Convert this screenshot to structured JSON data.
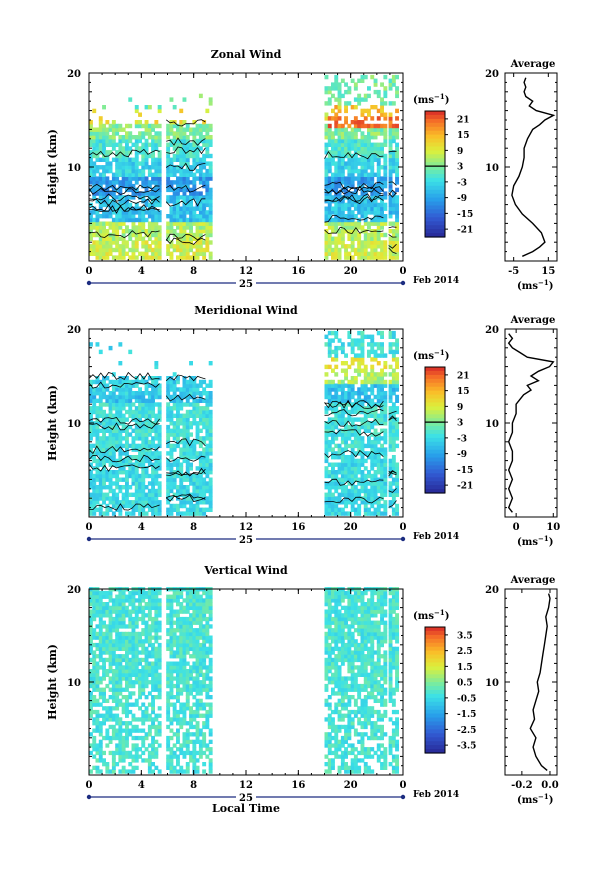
{
  "chart_data": [
    {
      "type": "heatmap",
      "title": "Zonal Wind",
      "ylabel": "Height (km)",
      "xticks": [
        "0",
        "4",
        "8",
        "12",
        "16",
        "20",
        "0"
      ],
      "yticks": [
        "10",
        "20"
      ],
      "date_label": "25",
      "month_label": "Feb 2014",
      "xlim": [
        0,
        24
      ],
      "ylim": [
        0,
        20
      ],
      "data_segments_hours": [
        [
          0,
          5.5
        ],
        [
          5.9,
          9.2
        ],
        [
          18.0,
          22.6
        ],
        [
          22.9,
          23.6
        ]
      ],
      "colorbar": {
        "unit": "(ms",
        "unit_exp": "−1",
        "unit_close": ")",
        "ticks": [
          "21",
          "15",
          "9",
          "3",
          "-3",
          "-9",
          "-15",
          "-21"
        ],
        "range": [
          -24,
          24
        ],
        "zero_line": 3
      },
      "average": {
        "title": "Average",
        "xticks": [
          "-5",
          "15"
        ],
        "xlim": [
          -10,
          20
        ],
        "unit": "(ms",
        "unit_exp": "−1",
        "unit_close": ")",
        "profile": [
          [
            0.5,
            0
          ],
          [
            1,
            6
          ],
          [
            1.5,
            10
          ],
          [
            2,
            13
          ],
          [
            3,
            11
          ],
          [
            4,
            6
          ],
          [
            5,
            0
          ],
          [
            6,
            -4
          ],
          [
            7,
            -6
          ],
          [
            8,
            -5
          ],
          [
            9,
            -2
          ],
          [
            10,
            0
          ],
          [
            11,
            1
          ],
          [
            12,
            1
          ],
          [
            13,
            3
          ],
          [
            14,
            6
          ],
          [
            14.5,
            10
          ],
          [
            15,
            13
          ],
          [
            15.5,
            18
          ],
          [
            16,
            8
          ],
          [
            16.5,
            4
          ],
          [
            17,
            6
          ],
          [
            17.5,
            2
          ],
          [
            18,
            1
          ],
          [
            18.5,
            2
          ],
          [
            19,
            1
          ],
          [
            19.5,
            2
          ]
        ]
      }
    },
    {
      "type": "heatmap",
      "title": "Meridional Wind",
      "ylabel": "Height (km)",
      "xticks": [
        "0",
        "4",
        "8",
        "12",
        "16",
        "20",
        "0"
      ],
      "yticks": [
        "10",
        "20"
      ],
      "date_label": "25",
      "month_label": "Feb 2014",
      "xlim": [
        0,
        24
      ],
      "ylim": [
        0,
        20
      ],
      "data_segments_hours": [
        [
          0,
          5.5
        ],
        [
          5.9,
          9.2
        ],
        [
          18.0,
          22.6
        ],
        [
          22.9,
          23.6
        ]
      ],
      "colorbar": {
        "unit": "(ms",
        "unit_exp": "−1",
        "unit_close": ")",
        "ticks": [
          "21",
          "15",
          "9",
          "3",
          "-3",
          "-9",
          "-15",
          "-21"
        ],
        "range": [
          -24,
          24
        ],
        "zero_line": 3
      },
      "average": {
        "title": "Average",
        "xticks": [
          "0",
          "10"
        ],
        "xlim": [
          -3,
          11
        ],
        "unit": "(ms",
        "unit_exp": "−1",
        "unit_close": ")",
        "profile": [
          [
            0.5,
            -1
          ],
          [
            1,
            -2
          ],
          [
            2,
            -1
          ],
          [
            3,
            -2
          ],
          [
            4,
            -1
          ],
          [
            5,
            -2
          ],
          [
            6,
            -1
          ],
          [
            7,
            -1
          ],
          [
            8,
            -2
          ],
          [
            9,
            -1
          ],
          [
            10,
            -1
          ],
          [
            11,
            0
          ],
          [
            12,
            0
          ],
          [
            13,
            2
          ],
          [
            13.5,
            4
          ],
          [
            14,
            3
          ],
          [
            14.5,
            6
          ],
          [
            15,
            4
          ],
          [
            15.5,
            6
          ],
          [
            16,
            9
          ],
          [
            16.5,
            10
          ],
          [
            17,
            3
          ],
          [
            17.5,
            1
          ],
          [
            18,
            -1
          ],
          [
            18.5,
            -2
          ],
          [
            19,
            -1
          ],
          [
            19.5,
            -2
          ]
        ]
      }
    },
    {
      "type": "heatmap",
      "title": "Vertical Wind",
      "ylabel": "Height (km)",
      "xlabel": "Local Time",
      "xticks": [
        "0",
        "4",
        "8",
        "12",
        "16",
        "20",
        "0"
      ],
      "yticks": [
        "10",
        "20"
      ],
      "date_label": "25",
      "month_label": "Feb 2014",
      "xlim": [
        0,
        24
      ],
      "ylim": [
        0,
        20
      ],
      "data_segments_hours": [
        [
          0,
          5.5
        ],
        [
          5.9,
          9.2
        ],
        [
          18.0,
          22.6
        ],
        [
          22.9,
          23.6
        ]
      ],
      "colorbar": {
        "unit": "(ms",
        "unit_exp": "−1",
        "unit_close": ")",
        "ticks": [
          "3.5",
          "2.5",
          "1.5",
          "0.5",
          "-0.5",
          "-1.5",
          "-2.5",
          "-3.5"
        ],
        "range": [
          -4,
          4
        ],
        "zero_line": null
      },
      "average": {
        "title": "Average",
        "xticks": [
          "-0.2",
          "0.0"
        ],
        "xlim": [
          -0.32,
          0.05
        ],
        "unit": "(ms",
        "unit_exp": "−1",
        "unit_close": ")",
        "profile": [
          [
            0.5,
            -0.02
          ],
          [
            1,
            -0.06
          ],
          [
            2,
            -0.1
          ],
          [
            3,
            -0.12
          ],
          [
            4,
            -0.1
          ],
          [
            5,
            -0.14
          ],
          [
            6,
            -0.11
          ],
          [
            7,
            -0.12
          ],
          [
            8,
            -0.1
          ],
          [
            9,
            -0.08
          ],
          [
            10,
            -0.09
          ],
          [
            11,
            -0.07
          ],
          [
            12,
            -0.06
          ],
          [
            13,
            -0.05
          ],
          [
            14,
            -0.04
          ],
          [
            15,
            -0.03
          ],
          [
            16,
            -0.02
          ],
          [
            17,
            -0.03
          ],
          [
            18,
            -0.01
          ],
          [
            19,
            0.0
          ],
          [
            19.5,
            -0.01
          ]
        ]
      }
    }
  ]
}
